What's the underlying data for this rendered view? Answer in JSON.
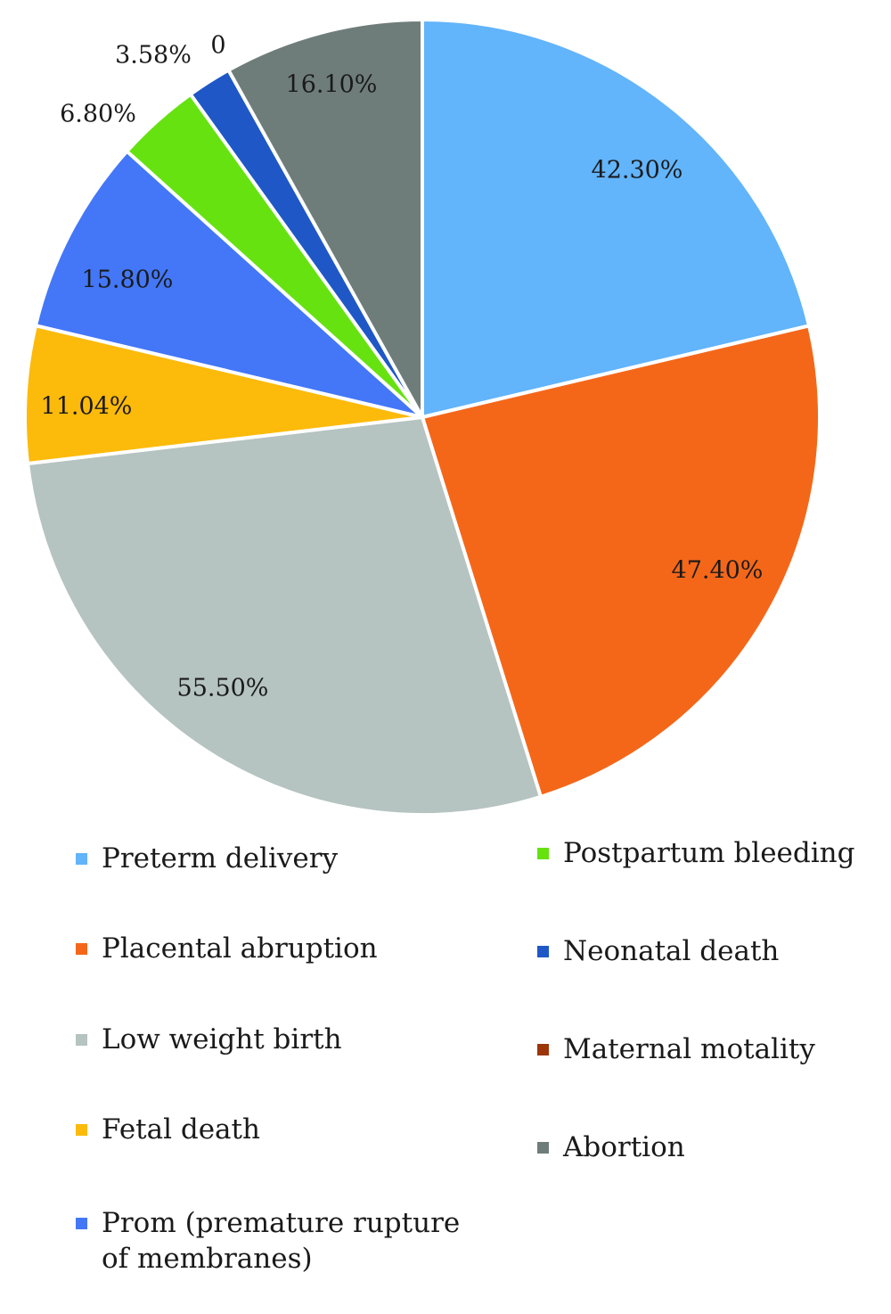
{
  "chart_data": {
    "type": "pie",
    "categories": [
      "Preterm delivery",
      "Placental abruption",
      "Low weight birth",
      "Fetal death",
      "Prom (premature rupture of membranes)",
      "Postpartum bleeding",
      "Neonatal death",
      "Maternal motality",
      "Abortion"
    ],
    "values": [
      42.3,
      47.4,
      55.5,
      11.04,
      15.8,
      6.8,
      3.58,
      0,
      16.1
    ],
    "labels": [
      "42.30%",
      "47.40%",
      "55.50%",
      "11.04%",
      "15.80%",
      "6.80%",
      "3.58%",
      "0",
      "16.10%"
    ],
    "colors": [
      "#62b4fb",
      "#f46719",
      "#b5c3c1",
      "#fcba0b",
      "#4377f7",
      "#66e211",
      "#1f58c6",
      "#9c3609",
      "#6f7d7a"
    ],
    "legend_position": "bottom"
  },
  "legend": {
    "columns": [
      [
        "Preterm delivery",
        "Placental abruption",
        "Low weight birth",
        "Fetal death",
        "Prom (premature rupture of membranes)"
      ],
      [
        "Postpartum bleeding",
        "Neonatal death",
        "Maternal motality",
        "Abortion"
      ]
    ]
  }
}
